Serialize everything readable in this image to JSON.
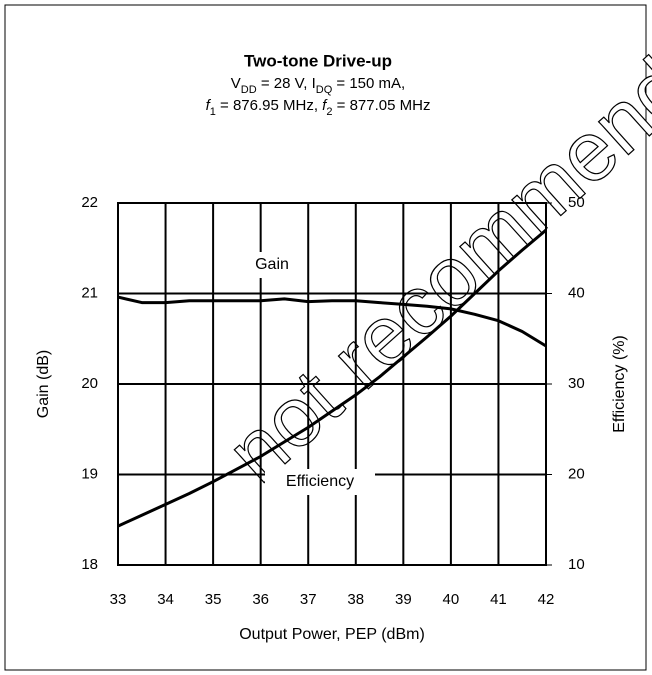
{
  "chart_data": {
    "type": "line",
    "title": "Two-tone Drive-up",
    "subtitle_lines": [
      [
        {
          "text": "V"
        },
        {
          "text": "DD",
          "style": "sub"
        },
        {
          "text": " = 28 V, I"
        },
        {
          "text": "DQ",
          "style": "sub"
        },
        {
          "text": " = 150 mA,"
        }
      ],
      [
        {
          "text": "f",
          "style": "italic"
        },
        {
          "text": "1",
          "style": "sub"
        },
        {
          "text": " = 876.95 MHz, "
        },
        {
          "text": "f",
          "style": "italic"
        },
        {
          "text": "2",
          "style": "sub"
        },
        {
          "text": " = 877.05 MHz"
        }
      ]
    ],
    "xlabel": "Output Power, PEP (dBm)",
    "ylabel": "Gain (dB)",
    "y2label": "Efficiency (%)",
    "watermark": "not recommend",
    "x": [
      33,
      33.5,
      34,
      34.5,
      35,
      35.5,
      36,
      36.5,
      37,
      37.5,
      38,
      38.5,
      39,
      39.5,
      40,
      40.5,
      41,
      41.5,
      42
    ],
    "series": [
      {
        "name": "Gain",
        "color": "#000000",
        "axis": "y",
        "values": [
          20.96,
          20.9,
          20.9,
          20.92,
          20.92,
          20.92,
          20.92,
          20.94,
          20.91,
          20.92,
          20.92,
          20.9,
          20.88,
          20.86,
          20.83,
          20.77,
          20.7,
          20.58,
          20.42
        ]
      },
      {
        "name": "Efficiency",
        "color": "#000000",
        "axis": "y2",
        "values": [
          14.3,
          15.5,
          16.7,
          17.9,
          19.2,
          20.6,
          22,
          23.6,
          25.2,
          27,
          28.8,
          30.8,
          33,
          35.2,
          37.5,
          40,
          42.5,
          44.8,
          47
        ]
      }
    ],
    "xlim": [
      33,
      42
    ],
    "xticks": [
      33,
      34,
      35,
      36,
      37,
      38,
      39,
      40,
      41,
      42
    ],
    "ylim": [
      18,
      22
    ],
    "yticks": [
      18,
      19,
      20,
      21,
      22
    ],
    "y2lim": [
      10,
      50
    ],
    "y2ticks": [
      10,
      20,
      30,
      40,
      50
    ],
    "grid": true
  }
}
